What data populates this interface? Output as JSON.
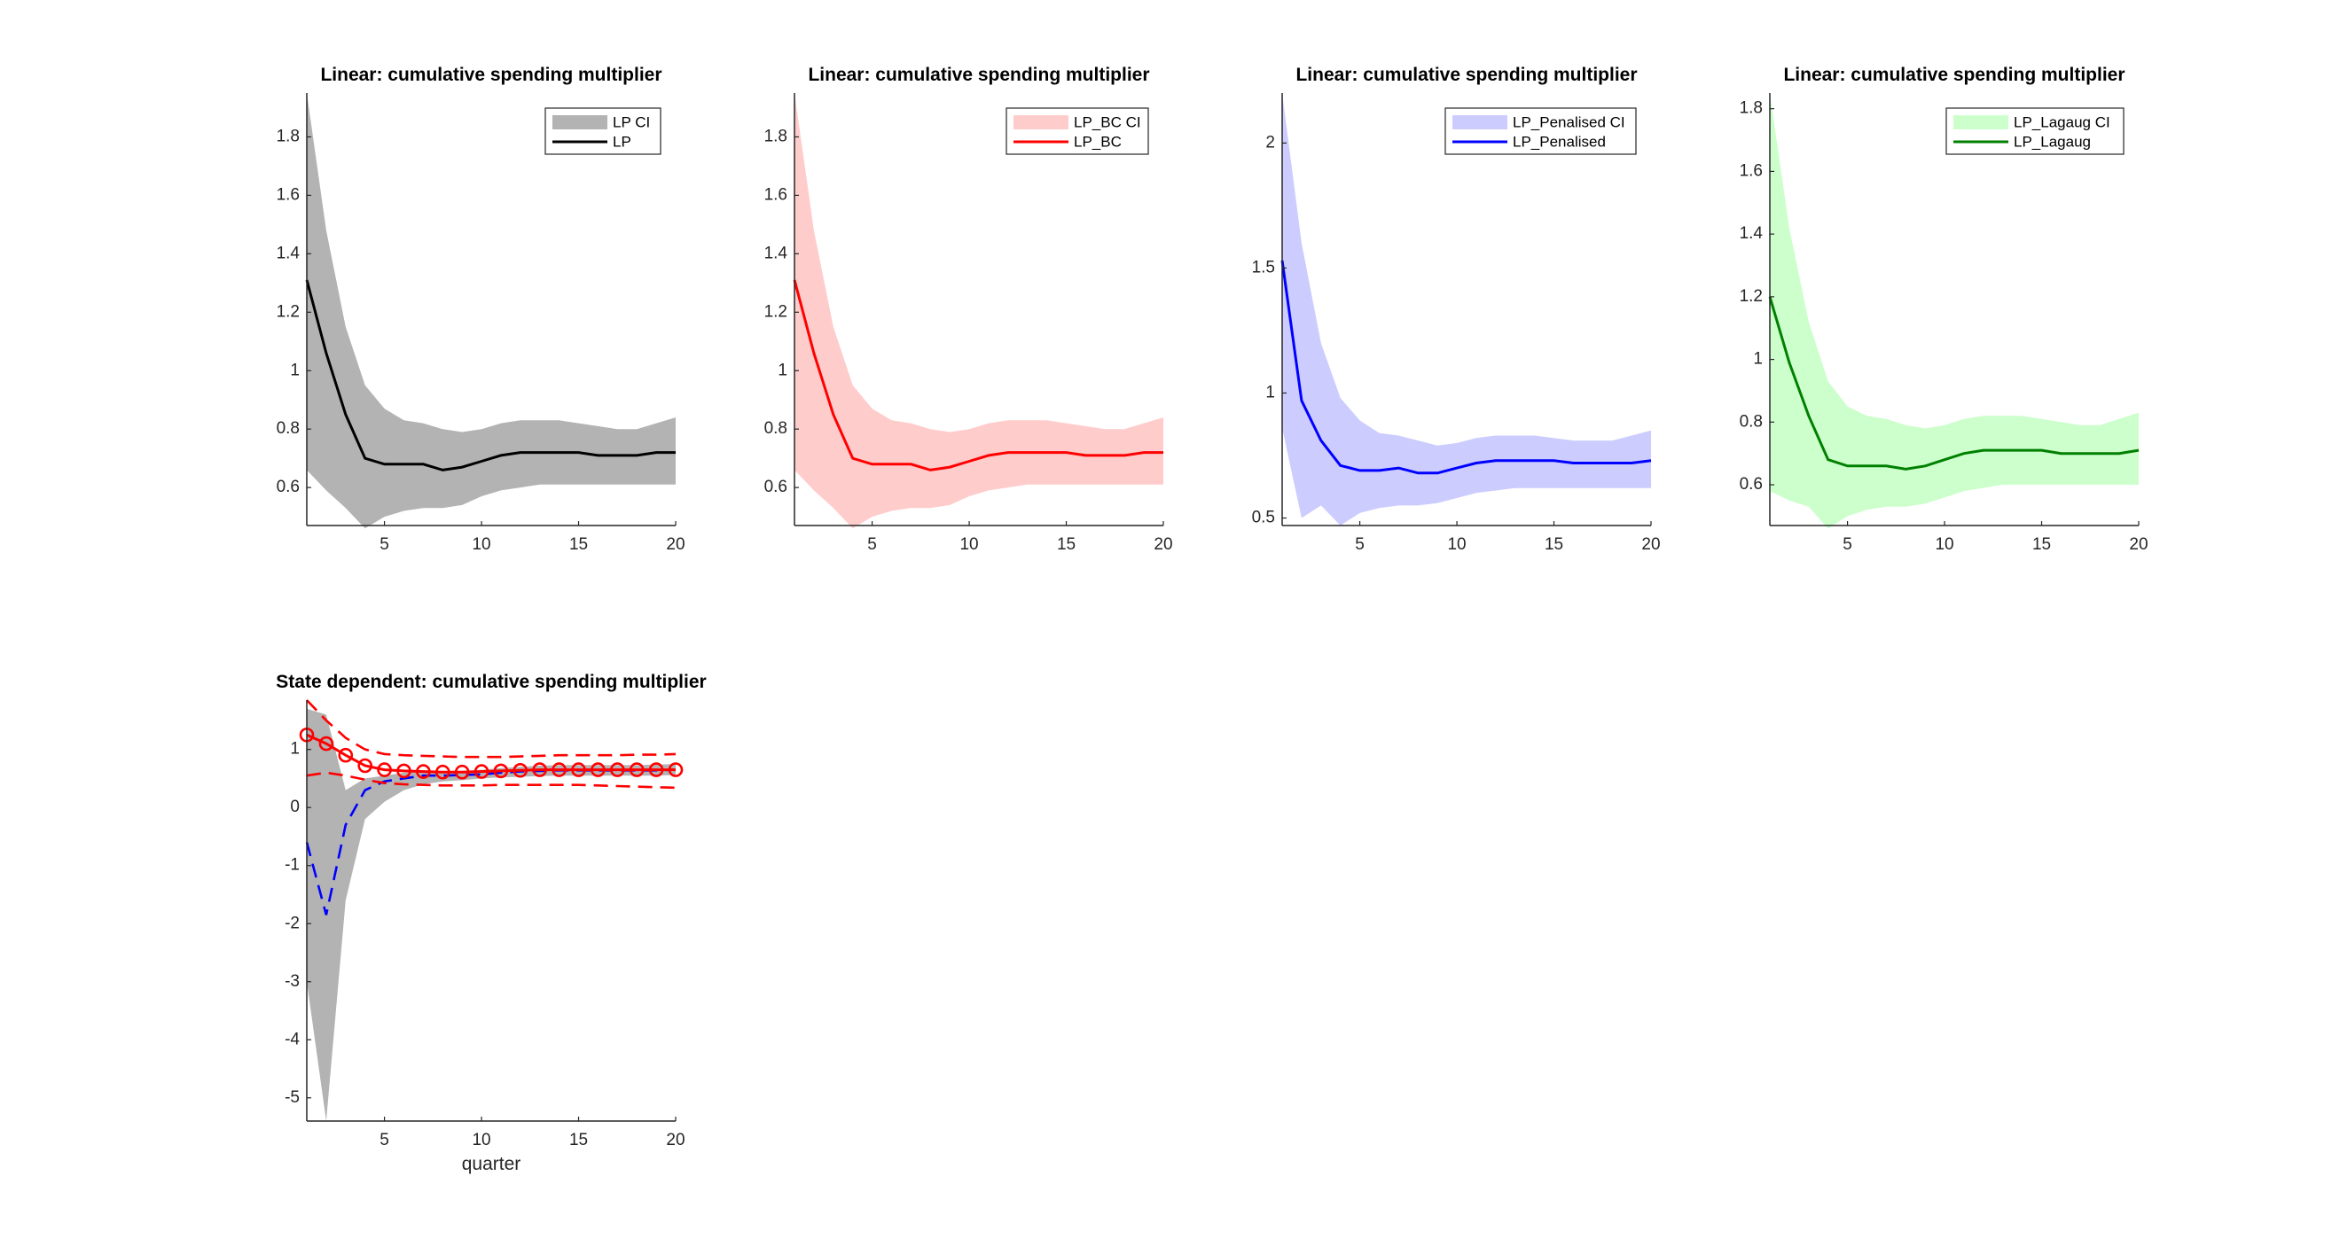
{
  "figure": {
    "background": "#ffffff"
  },
  "chart_data": [
    {
      "type": "line",
      "title": "Linear: cumulative spending multiplier",
      "xlabel": "",
      "ylabel": "",
      "xlim": [
        1,
        20
      ],
      "ylim": [
        0.47,
        1.95
      ],
      "xticks": [
        5,
        10,
        15,
        20
      ],
      "yticks": [
        0.6,
        0.8,
        1,
        1.2,
        1.4,
        1.6,
        1.8
      ],
      "ytick_labels": [
        "0.6",
        "0.8",
        "1",
        "1.2",
        "1.4",
        "1.6",
        "1.8"
      ],
      "legend_position": "top-right",
      "grid": false,
      "x": [
        1,
        2,
        3,
        4,
        5,
        6,
        7,
        8,
        9,
        10,
        11,
        12,
        13,
        14,
        15,
        16,
        17,
        18,
        19,
        20
      ],
      "band": {
        "name": "LP CI",
        "color": "#b3b3b3",
        "upper": [
          1.95,
          1.48,
          1.15,
          0.95,
          0.87,
          0.83,
          0.82,
          0.8,
          0.79,
          0.8,
          0.82,
          0.83,
          0.83,
          0.83,
          0.82,
          0.81,
          0.8,
          0.8,
          0.82,
          0.84
        ],
        "lower": [
          0.66,
          0.59,
          0.53,
          0.46,
          0.5,
          0.52,
          0.53,
          0.53,
          0.54,
          0.57,
          0.59,
          0.6,
          0.61,
          0.61,
          0.61,
          0.61,
          0.61,
          0.61,
          0.61,
          0.61
        ]
      },
      "series": [
        {
          "name": "LP",
          "color": "#000000",
          "values": [
            1.31,
            1.06,
            0.85,
            0.7,
            0.68,
            0.68,
            0.68,
            0.66,
            0.67,
            0.69,
            0.71,
            0.72,
            0.72,
            0.72,
            0.72,
            0.71,
            0.71,
            0.71,
            0.72,
            0.72
          ]
        }
      ]
    },
    {
      "type": "line",
      "title": "Linear: cumulative spending multiplier",
      "xlabel": "",
      "ylabel": "",
      "xlim": [
        1,
        20
      ],
      "ylim": [
        0.47,
        1.95
      ],
      "xticks": [
        5,
        10,
        15,
        20
      ],
      "yticks": [
        0.6,
        0.8,
        1,
        1.2,
        1.4,
        1.6,
        1.8
      ],
      "ytick_labels": [
        "0.6",
        "0.8",
        "1",
        "1.2",
        "1.4",
        "1.6",
        "1.8"
      ],
      "legend_position": "top-right",
      "grid": false,
      "x": [
        1,
        2,
        3,
        4,
        5,
        6,
        7,
        8,
        9,
        10,
        11,
        12,
        13,
        14,
        15,
        16,
        17,
        18,
        19,
        20
      ],
      "band": {
        "name": "LP_BC CI",
        "color": "#ffcccc",
        "upper": [
          1.95,
          1.48,
          1.15,
          0.95,
          0.87,
          0.83,
          0.82,
          0.8,
          0.79,
          0.8,
          0.82,
          0.83,
          0.83,
          0.83,
          0.82,
          0.81,
          0.8,
          0.8,
          0.82,
          0.84
        ],
        "lower": [
          0.66,
          0.59,
          0.53,
          0.46,
          0.5,
          0.52,
          0.53,
          0.53,
          0.54,
          0.57,
          0.59,
          0.6,
          0.61,
          0.61,
          0.61,
          0.61,
          0.61,
          0.61,
          0.61,
          0.61
        ]
      },
      "series": [
        {
          "name": "LP_BC",
          "color": "#ff0000",
          "values": [
            1.31,
            1.06,
            0.85,
            0.7,
            0.68,
            0.68,
            0.68,
            0.66,
            0.67,
            0.69,
            0.71,
            0.72,
            0.72,
            0.72,
            0.72,
            0.71,
            0.71,
            0.71,
            0.72,
            0.72
          ]
        }
      ]
    },
    {
      "type": "line",
      "title": "Linear: cumulative spending multiplier",
      "xlabel": "",
      "ylabel": "",
      "xlim": [
        1,
        20
      ],
      "ylim": [
        0.47,
        2.2
      ],
      "xticks": [
        5,
        10,
        15,
        20
      ],
      "yticks": [
        0.5,
        1,
        1.5,
        2
      ],
      "ytick_labels": [
        "0.5",
        "1",
        "1.5",
        "2"
      ],
      "legend_position": "top-right",
      "grid": false,
      "x": [
        1,
        2,
        3,
        4,
        5,
        6,
        7,
        8,
        9,
        10,
        11,
        12,
        13,
        14,
        15,
        16,
        17,
        18,
        19,
        20
      ],
      "band": {
        "name": "LP_Penalised CI",
        "color": "#ccccff",
        "upper": [
          2.2,
          1.6,
          1.2,
          0.98,
          0.89,
          0.84,
          0.83,
          0.81,
          0.79,
          0.8,
          0.82,
          0.83,
          0.83,
          0.83,
          0.82,
          0.81,
          0.81,
          0.81,
          0.83,
          0.85
        ],
        "lower": [
          0.86,
          0.5,
          0.55,
          0.47,
          0.52,
          0.54,
          0.55,
          0.55,
          0.56,
          0.58,
          0.6,
          0.61,
          0.62,
          0.62,
          0.62,
          0.62,
          0.62,
          0.62,
          0.62,
          0.62
        ]
      },
      "series": [
        {
          "name": "LP_Penalised",
          "color": "#0000ff",
          "values": [
            1.53,
            0.97,
            0.81,
            0.71,
            0.69,
            0.69,
            0.7,
            0.68,
            0.68,
            0.7,
            0.72,
            0.73,
            0.73,
            0.73,
            0.73,
            0.72,
            0.72,
            0.72,
            0.72,
            0.73
          ]
        }
      ]
    },
    {
      "type": "line",
      "title": "Linear: cumulative spending multiplier",
      "xlabel": "",
      "ylabel": "",
      "xlim": [
        1,
        20
      ],
      "ylim": [
        0.47,
        1.85
      ],
      "xticks": [
        5,
        10,
        15,
        20
      ],
      "yticks": [
        0.6,
        0.8,
        1,
        1.2,
        1.4,
        1.6,
        1.8
      ],
      "ytick_labels": [
        "0.6",
        "0.8",
        "1",
        "1.2",
        "1.4",
        "1.6",
        "1.8"
      ],
      "legend_position": "top-right",
      "grid": false,
      "x": [
        1,
        2,
        3,
        4,
        5,
        6,
        7,
        8,
        9,
        10,
        11,
        12,
        13,
        14,
        15,
        16,
        17,
        18,
        19,
        20
      ],
      "band": {
        "name": "LP_Lagaug CI",
        "color": "#ccffcc",
        "upper": [
          1.85,
          1.42,
          1.12,
          0.93,
          0.85,
          0.82,
          0.81,
          0.79,
          0.78,
          0.79,
          0.81,
          0.82,
          0.82,
          0.82,
          0.81,
          0.8,
          0.79,
          0.79,
          0.81,
          0.83
        ],
        "lower": [
          0.58,
          0.55,
          0.53,
          0.46,
          0.5,
          0.52,
          0.53,
          0.53,
          0.54,
          0.56,
          0.58,
          0.59,
          0.6,
          0.6,
          0.6,
          0.6,
          0.6,
          0.6,
          0.6,
          0.6
        ]
      },
      "series": [
        {
          "name": "LP_Lagaug",
          "color": "#008000",
          "values": [
            1.2,
            0.99,
            0.82,
            0.68,
            0.66,
            0.66,
            0.66,
            0.65,
            0.66,
            0.68,
            0.7,
            0.71,
            0.71,
            0.71,
            0.71,
            0.7,
            0.7,
            0.7,
            0.7,
            0.71
          ]
        }
      ]
    },
    {
      "type": "line",
      "title": "State dependent: cumulative spending multiplier",
      "xlabel": "quarter",
      "ylabel": "",
      "xlim": [
        1,
        20
      ],
      "ylim": [
        -5.4,
        1.85
      ],
      "xticks": [
        5,
        10,
        15,
        20
      ],
      "yticks": [
        -5,
        -4,
        -3,
        -2,
        -1,
        0,
        1
      ],
      "ytick_labels": [
        "-5",
        "-4",
        "-3",
        "-2",
        "-1",
        "0",
        "1"
      ],
      "legend_position": "none",
      "grid": false,
      "x": [
        1,
        2,
        3,
        4,
        5,
        6,
        7,
        8,
        9,
        10,
        11,
        12,
        13,
        14,
        15,
        16,
        17,
        18,
        19,
        20
      ],
      "band": {
        "name": "",
        "color": "#b3b3b3",
        "upper": [
          1.7,
          1.6,
          0.3,
          0.5,
          0.55,
          0.6,
          0.62,
          0.62,
          0.63,
          0.65,
          0.68,
          0.7,
          0.72,
          0.73,
          0.73,
          0.73,
          0.73,
          0.73,
          0.74,
          0.75
        ],
        "lower": [
          -3.0,
          -5.4,
          -1.6,
          -0.2,
          0.1,
          0.3,
          0.4,
          0.45,
          0.47,
          0.5,
          0.52,
          0.53,
          0.54,
          0.55,
          0.55,
          0.55,
          0.55,
          0.55,
          0.55,
          0.56
        ]
      },
      "series": [
        {
          "name": "",
          "color": "#0000ff",
          "style": "dashed",
          "values": [
            -0.6,
            -1.85,
            -0.3,
            0.3,
            0.45,
            0.5,
            0.55,
            0.55,
            0.56,
            0.57,
            0.6,
            0.62,
            0.63,
            0.64,
            0.64,
            0.64,
            0.64,
            0.64,
            0.64,
            0.65
          ]
        },
        {
          "name": "",
          "color": "#ff0000",
          "style": "solid",
          "marker": "circle",
          "values": [
            1.25,
            1.1,
            0.9,
            0.72,
            0.65,
            0.63,
            0.62,
            0.61,
            0.61,
            0.62,
            0.63,
            0.64,
            0.65,
            0.65,
            0.65,
            0.65,
            0.65,
            0.65,
            0.65,
            0.65
          ]
        },
        {
          "name": "",
          "color": "#ff0000",
          "style": "dashed",
          "values": [
            1.85,
            1.5,
            1.2,
            1.0,
            0.92,
            0.9,
            0.89,
            0.88,
            0.87,
            0.87,
            0.87,
            0.88,
            0.89,
            0.9,
            0.9,
            0.9,
            0.9,
            0.91,
            0.91,
            0.92
          ]
        },
        {
          "name": "",
          "color": "#ff0000",
          "style": "dashed",
          "values": [
            0.55,
            0.6,
            0.55,
            0.48,
            0.42,
            0.4,
            0.39,
            0.38,
            0.38,
            0.38,
            0.39,
            0.39,
            0.39,
            0.39,
            0.39,
            0.38,
            0.37,
            0.36,
            0.35,
            0.34
          ]
        }
      ]
    }
  ]
}
